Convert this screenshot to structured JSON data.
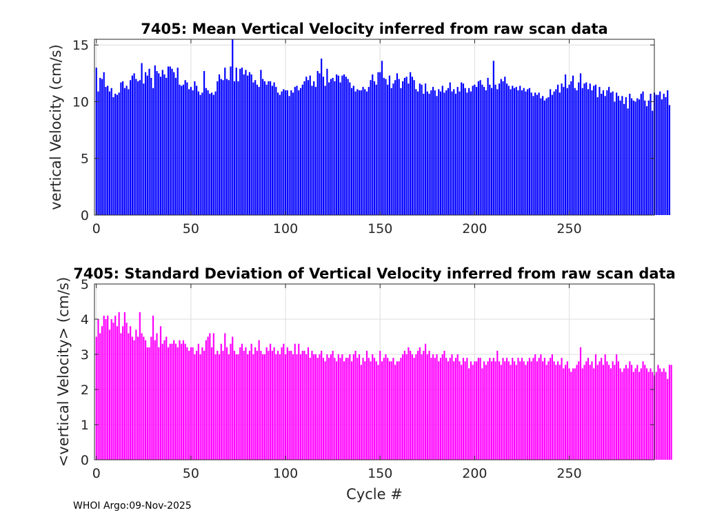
{
  "footer": "WHOI Argo:09-Nov-2025",
  "colors": {
    "mean_bar": "#0000ff",
    "std_bar": "#ff00ff",
    "grid": "#dcdcdc",
    "axis": "#262626"
  },
  "chart_data": [
    {
      "type": "bar",
      "title": "7405: Mean Vertical Velocity inferred from raw scan data",
      "xlabel": "",
      "ylabel": "vertical Velocity (cm/s)",
      "xlim": [
        -1,
        295
      ],
      "ylim": [
        0,
        15.5
      ],
      "xticks": [
        0,
        50,
        100,
        150,
        200,
        250
      ],
      "yticks": [
        0,
        5,
        10,
        15
      ],
      "x_start": 0,
      "values": [
        13.0,
        10.9,
        12.1,
        12.0,
        12.6,
        11.3,
        11.4,
        10.9,
        11.2,
        10.4,
        10.7,
        10.6,
        10.8,
        11.7,
        11.8,
        11.2,
        11.4,
        11.1,
        11.9,
        12.3,
        12.5,
        12.0,
        11.8,
        11.9,
        13.4,
        11.6,
        12.6,
        12.3,
        12.9,
        12.1,
        11.2,
        13.2,
        12.7,
        12.5,
        12.2,
        12.8,
        12.4,
        12.1,
        13.1,
        13.1,
        12.9,
        12.6,
        12.1,
        13.0,
        11.5,
        11.4,
        11.5,
        11.9,
        11.7,
        11.1,
        11.3,
        11.0,
        11.8,
        11.4,
        10.9,
        10.6,
        10.8,
        12.7,
        11.2,
        11.0,
        10.7,
        10.8,
        10.6,
        10.9,
        11.8,
        12.4,
        12.0,
        11.9,
        13.0,
        12.0,
        11.9,
        13.1,
        15.5,
        11.8,
        13.0,
        11.8,
        12.9,
        13.0,
        12.4,
        12.8,
        12.3,
        12.6,
        12.4,
        11.7,
        11.9,
        11.5,
        11.3,
        12.8,
        12.0,
        11.8,
        11.5,
        11.8,
        11.8,
        11.4,
        11.7,
        11.3,
        10.8,
        10.6,
        10.9,
        11.1,
        11.0,
        11.0,
        10.5,
        11.0,
        10.8,
        11.3,
        11.4,
        11.0,
        11.2,
        11.5,
        11.8,
        12.2,
        11.9,
        12.3,
        11.4,
        11.8,
        11.3,
        12.7,
        12.5,
        13.8,
        12.2,
        11.4,
        12.9,
        11.7,
        12.0,
        12.1,
        11.8,
        12.4,
        12.3,
        11.7,
        12.3,
        12.4,
        12.2,
        12.0,
        11.7,
        11.2,
        11.4,
        10.9,
        11.1,
        11.0,
        11.0,
        11.3,
        11.1,
        10.9,
        11.3,
        11.9,
        12.4,
        11.8,
        11.5,
        12.6,
        12.6,
        13.6,
        12.1,
        12.0,
        11.5,
        12.3,
        11.2,
        11.6,
        11.9,
        12.5,
        12.0,
        11.2,
        11.8,
        12.1,
        12.2,
        11.6,
        12.6,
        12.2,
        11.9,
        11.1,
        10.9,
        11.6,
        11.5,
        10.7,
        11.6,
        10.9,
        10.7,
        11.0,
        11.3,
        11.0,
        10.5,
        11.1,
        10.9,
        11.4,
        10.8,
        11.0,
        11.2,
        11.7,
        10.9,
        11.1,
        10.7,
        11.3,
        10.9,
        11.7,
        11.6,
        11.2,
        10.8,
        11.2,
        10.9,
        11.4,
        11.5,
        11.3,
        11.8,
        11.9,
        11.5,
        11.3,
        11.0,
        12.1,
        11.5,
        11.2,
        13.6,
        11.5,
        11.1,
        11.6,
        12.0,
        11.8,
        12.2,
        11.6,
        11.4,
        11.1,
        11.4,
        11.2,
        11.3,
        11.0,
        11.4,
        11.0,
        11.2,
        10.9,
        11.1,
        11.2,
        10.8,
        10.5,
        10.8,
        10.6,
        10.8,
        10.3,
        10.5,
        10.1,
        10.3,
        10.4,
        11.1,
        10.6,
        10.9,
        11.1,
        11.5,
        10.8,
        11.6,
        11.3,
        12.4,
        11.2,
        11.5,
        11.8,
        12.3,
        11.2,
        11.0,
        11.7,
        12.5,
        11.2,
        11.6,
        11.7,
        11.1,
        11.6,
        11.0,
        11.4,
        11.5,
        10.4,
        11.3,
        10.7,
        11.0,
        10.5,
        11.0,
        11.3,
        10.8,
        10.9,
        10.0,
        10.8,
        10.5,
        10.1,
        10.5,
        9.8,
        10.4,
        9.4,
        10.7,
        10.3,
        10.1,
        10.0,
        10.3,
        10.2,
        10.7,
        10.9,
        10.1,
        9.6,
        10.1,
        10.7,
        9.2,
        10.8,
        10.6,
        10.6,
        10.9,
        10.2,
        10.7,
        10.4,
        11.0,
        9.7
      ],
      "values_note": "estimated"
    },
    {
      "type": "bar",
      "title": "7405: Standard Deviation of Vertical Velocity inferred from raw scan data",
      "xlabel": "Cycle #",
      "ylabel": "<vertical Velocity> (cm/s)",
      "xlim": [
        -1,
        295
      ],
      "ylim": [
        0,
        5
      ],
      "xticks": [
        0,
        50,
        100,
        150,
        200,
        250
      ],
      "yticks": [
        0,
        1,
        2,
        3,
        4,
        5
      ],
      "x_start": 0,
      "values": [
        3.5,
        4.0,
        3.6,
        3.8,
        4.1,
        4.0,
        4.1,
        3.7,
        4.0,
        3.9,
        4.1,
        3.8,
        4.2,
        3.6,
        3.8,
        4.2,
        3.9,
        3.6,
        3.8,
        3.5,
        3.4,
        3.7,
        3.5,
        4.2,
        3.6,
        3.5,
        3.4,
        3.2,
        3.2,
        3.5,
        4.1,
        3.4,
        3.6,
        3.2,
        3.8,
        3.3,
        3.4,
        3.5,
        3.2,
        3.3,
        3.3,
        3.4,
        3.3,
        3.2,
        3.4,
        3.3,
        3.4,
        3.3,
        3.2,
        3.1,
        3.2,
        3.2,
        3.0,
        3.1,
        3.3,
        3.0,
        3.2,
        3.1,
        3.4,
        3.5,
        3.6,
        3.2,
        3.6,
        3.0,
        3.1,
        3.0,
        3.3,
        3.1,
        3.6,
        3.2,
        3.0,
        3.3,
        3.5,
        3.1,
        3.0,
        3.0,
        3.2,
        3.3,
        3.1,
        3.2,
        3.0,
        3.1,
        3.3,
        3.0,
        3.2,
        3.1,
        3.4,
        3.1,
        3.0,
        3.0,
        3.2,
        3.1,
        3.3,
        3.1,
        3.2,
        3.0,
        3.1,
        3.0,
        3.2,
        3.3,
        3.0,
        3.2,
        3.1,
        3.1,
        3.0,
        3.3,
        3.0,
        3.3,
        3.0,
        3.1,
        3.1,
        3.0,
        3.2,
        2.9,
        3.1,
        3.0,
        3.0,
        2.9,
        3.0,
        3.1,
        2.9,
        2.8,
        3.0,
        2.9,
        3.0,
        3.1,
        2.9,
        2.8,
        3.0,
        2.9,
        3.0,
        2.8,
        2.9,
        2.9,
        3.0,
        2.8,
        3.0,
        3.1,
        2.9,
        3.0,
        2.7,
        2.9,
        2.8,
        3.1,
        2.9,
        2.8,
        3.0,
        2.9,
        2.8,
        2.7,
        3.1,
        2.8,
        2.9,
        3.0,
        2.9,
        2.8,
        2.8,
        2.9,
        2.7,
        2.8,
        2.8,
        2.9,
        3.0,
        3.1,
        3.0,
        3.2,
        3.1,
        3.0,
        2.9,
        3.0,
        3.1,
        3.2,
        3.0,
        3.1,
        3.3,
        3.0,
        3.1,
        2.9,
        3.0,
        2.9,
        3.0,
        2.8,
        2.9,
        3.0,
        3.1,
        2.9,
        2.8,
        2.9,
        3.0,
        2.8,
        2.9,
        3.0,
        2.8,
        2.7,
        2.9,
        2.8,
        2.9,
        2.6,
        2.8,
        2.7,
        2.8,
        2.8,
        2.9,
        2.9,
        2.6,
        2.8,
        2.7,
        2.8,
        2.9,
        2.8,
        2.9,
        2.8,
        3.1,
        2.8,
        2.7,
        2.9,
        2.8,
        2.9,
        2.8,
        2.7,
        2.9,
        2.8,
        2.7,
        2.9,
        2.8,
        2.9,
        2.8,
        2.7,
        2.8,
        2.9,
        2.8,
        2.9,
        3.0,
        2.8,
        2.9,
        3.0,
        2.8,
        2.9,
        2.7,
        2.8,
        2.9,
        3.0,
        2.8,
        2.7,
        2.8,
        2.7,
        2.9,
        2.6,
        2.7,
        2.8,
        2.6,
        2.5,
        2.6,
        2.6,
        2.7,
        2.8,
        3.2,
        2.6,
        2.7,
        2.8,
        2.9,
        2.7,
        2.8,
        2.6,
        3.0,
        2.7,
        2.8,
        2.9,
        2.7,
        3.0,
        2.8,
        2.7,
        2.6,
        2.8,
        2.7,
        3.0,
        2.8,
        2.6,
        2.5,
        2.6,
        2.7,
        2.6,
        2.8,
        2.7,
        2.5,
        2.6,
        2.7,
        2.5,
        2.6,
        2.8,
        2.7,
        2.6,
        2.5,
        2.6,
        2.5,
        2.4,
        2.5,
        2.7,
        2.6,
        2.5,
        2.6,
        2.5,
        2.3,
        2.7,
        2.7
      ],
      "values_note": "estimated"
    }
  ]
}
